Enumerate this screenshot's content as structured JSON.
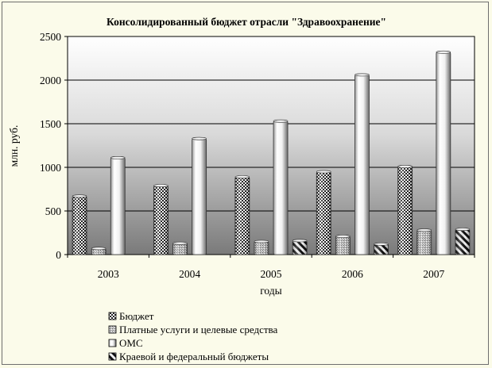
{
  "chart_data": {
    "type": "bar",
    "title": "Консолидированный бюджет отрасли \"Здравоохранение\"",
    "xlabel": "годы",
    "ylabel": "млн. руб.",
    "categories": [
      "2003",
      "2004",
      "2005",
      "2006",
      "2007"
    ],
    "ylim": [
      0,
      2500
    ],
    "yticks": [
      "0",
      "500",
      "1000",
      "1500",
      "2000",
      "2500"
    ],
    "grid": true,
    "legend_position": "bottom-left",
    "series": [
      {
        "name": "Бюджет",
        "values": [
          670,
          790,
          890,
          950,
          1010
        ],
        "pattern": "checker"
      },
      {
        "name": "Платные услуги и целевые средства",
        "values": [
          70,
          130,
          150,
          210,
          280
        ],
        "pattern": "stipple"
      },
      {
        "name": "ОМС",
        "values": [
          1110,
          1330,
          1530,
          2060,
          2320
        ],
        "pattern": "white"
      },
      {
        "name": "Краевой и федеральный бюджеты",
        "values": [
          0,
          0,
          160,
          120,
          290
        ],
        "pattern": "diagonal"
      }
    ]
  }
}
